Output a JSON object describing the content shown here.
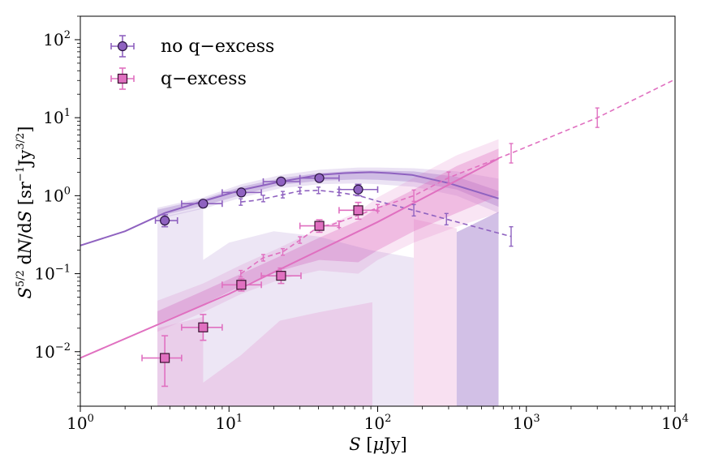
{
  "chart_data": {
    "type": "scatter",
    "xlabel": "S [μJy]",
    "ylabel": "S^{5/2} dN/dS [sr^{-1}Jy^{3/2}]",
    "xscale": "log",
    "yscale": "log",
    "xlim": [
      1,
      10000
    ],
    "ylim": [
      0.002,
      200
    ],
    "x_ticks": [
      "10^0",
      "10^1",
      "10^2",
      "10^3",
      "10^4"
    ],
    "y_ticks": [
      "10^-2",
      "10^-1",
      "10^0",
      "10^1",
      "10^2"
    ],
    "legend": {
      "position": "top-left",
      "entries": [
        "no q−excess",
        "q−excess"
      ]
    },
    "colors": {
      "purple": "#8f62c0",
      "pink": "#e070c0",
      "purple_edge": "#2a1440",
      "pink_edge": "#3a1030"
    },
    "series": [
      {
        "name": "no q−excess",
        "marker": "circle",
        "points": [
          {
            "x": 3.7,
            "y": 0.48,
            "xerr": [
              3.2,
              4.5
            ],
            "yerr": [
              0.4,
              0.57
            ]
          },
          {
            "x": 6.7,
            "y": 0.79,
            "xerr": [
              4.8,
              9.0
            ],
            "yerr": [
              0.71,
              0.86
            ]
          },
          {
            "x": 12.1,
            "y": 1.1,
            "xerr": [
              9.0,
              16.5
            ],
            "yerr": [
              1.0,
              1.2
            ]
          },
          {
            "x": 22.4,
            "y": 1.52,
            "xerr": [
              17.0,
              30.0
            ],
            "yerr": [
              1.4,
              1.65
            ]
          },
          {
            "x": 40.5,
            "y": 1.68,
            "xerr": [
              30.0,
              55.0
            ],
            "yerr": [
              1.55,
              1.82
            ]
          },
          {
            "x": 74.0,
            "y": 1.2,
            "xerr": [
              55.0,
              100.0
            ],
            "yerr": [
              1.0,
              1.4
            ]
          }
        ]
      },
      {
        "name": "q−excess",
        "marker": "square",
        "points": [
          {
            "x": 3.7,
            "y": 0.0083,
            "xerr": [
              2.6,
              4.8
            ],
            "yerr": [
              0.0036,
              0.016
            ]
          },
          {
            "x": 6.7,
            "y": 0.0205,
            "xerr": [
              4.8,
              9.0
            ],
            "yerr": [
              0.014,
              0.03
            ]
          },
          {
            "x": 12.1,
            "y": 0.072,
            "xerr": [
              9.0,
              16.5
            ],
            "yerr": [
              0.06,
              0.086
            ]
          },
          {
            "x": 22.4,
            "y": 0.094,
            "xerr": [
              16.5,
              30.5
            ],
            "yerr": [
              0.075,
              0.118
            ]
          },
          {
            "x": 40.5,
            "y": 0.41,
            "xerr": [
              30.0,
              55.0
            ],
            "yerr": [
              0.34,
              0.49
            ]
          },
          {
            "x": 74.0,
            "y": 0.65,
            "xerr": [
              55.0,
              100.0
            ],
            "yerr": [
              0.5,
              0.82
            ]
          }
        ]
      }
    ],
    "model_lines": {
      "purple_solid": [
        [
          1,
          0.23
        ],
        [
          2,
          0.35
        ],
        [
          3.7,
          0.6
        ],
        [
          6.7,
          0.85
        ],
        [
          12.1,
          1.18
        ],
        [
          22.4,
          1.52
        ],
        [
          40.5,
          1.85
        ],
        [
          60,
          1.95
        ],
        [
          90,
          2.0
        ],
        [
          120,
          1.95
        ],
        [
          170,
          1.85
        ],
        [
          300,
          1.45
        ],
        [
          650,
          0.92
        ]
      ],
      "purple_dashed": [
        [
          12,
          0.83
        ],
        [
          15,
          0.87
        ],
        [
          20,
          0.97
        ],
        [
          30,
          1.15
        ],
        [
          40,
          1.17
        ],
        [
          55,
          1.1
        ],
        [
          75,
          1.0
        ],
        [
          100,
          0.85
        ],
        [
          175,
          0.65
        ],
        [
          290,
          0.5
        ],
        [
          790,
          0.3
        ]
      ],
      "pink_solid": [
        [
          1,
          0.0083
        ],
        [
          10,
          0.055
        ],
        [
          100,
          0.46
        ],
        [
          650,
          3.0
        ]
      ],
      "pink_dashed": [
        [
          12,
          0.1
        ],
        [
          17,
          0.16
        ],
        [
          23,
          0.19
        ],
        [
          30,
          0.27
        ],
        [
          40,
          0.4
        ],
        [
          50,
          0.43
        ],
        [
          70,
          0.54
        ],
        [
          100,
          0.7
        ],
        [
          175,
          1.0
        ],
        [
          300,
          1.7
        ],
        [
          790,
          3.5
        ],
        [
          3000,
          10.0
        ],
        [
          10000,
          31.0
        ]
      ]
    },
    "dashed_point_markers": {
      "purple": [
        [
          12,
          0.83
        ],
        [
          17,
          0.92
        ],
        [
          23,
          1.03
        ],
        [
          30,
          1.16
        ],
        [
          40,
          1.17
        ],
        [
          55,
          1.1
        ],
        [
          175,
          0.65
        ],
        [
          290,
          0.5
        ],
        [
          790,
          0.3
        ]
      ],
      "pink": [
        [
          12,
          0.1
        ],
        [
          17,
          0.16
        ],
        [
          23,
          0.19
        ],
        [
          30,
          0.27
        ],
        [
          40,
          0.4
        ],
        [
          55,
          0.43
        ],
        [
          100,
          0.7
        ],
        [
          175,
          1.0
        ],
        [
          300,
          1.7
        ],
        [
          790,
          3.5
        ],
        [
          3000,
          10.0
        ]
      ]
    },
    "bands": {
      "purple_dark": {
        "x": [
          3.3,
          6.7,
          12.1,
          22.4,
          40.5,
          74,
          100,
          175,
          340,
          650
        ],
        "lo": [
          0.54,
          0.74,
          1.02,
          1.38,
          1.55,
          1.62,
          1.6,
          1.5,
          1.2,
          0.72
        ],
        "hi": [
          0.66,
          0.9,
          1.3,
          1.68,
          1.95,
          2.1,
          2.1,
          2.05,
          1.75,
          1.15
        ]
      },
      "purple_light": {
        "x": [
          3.3,
          6.7,
          12.1,
          22.4,
          40.5,
          74,
          100,
          175,
          340,
          650
        ],
        "lo": [
          0.5,
          0.68,
          0.94,
          1.25,
          1.4,
          1.44,
          1.4,
          1.3,
          1.0,
          0.6
        ],
        "hi": [
          0.7,
          0.95,
          1.4,
          1.85,
          2.15,
          2.3,
          2.3,
          2.25,
          2.05,
          1.65
        ]
      },
      "pink_dark": {
        "x": [
          3.3,
          6.7,
          12.1,
          22.4,
          40.5,
          74,
          100,
          175,
          340,
          650
        ],
        "lo": [
          0.023,
          0.04,
          0.07,
          0.11,
          0.15,
          0.14,
          0.2,
          0.35,
          0.6,
          1.0
        ],
        "hi": [
          0.033,
          0.06,
          0.1,
          0.17,
          0.29,
          0.48,
          0.7,
          1.2,
          2.4,
          4.0
        ]
      },
      "pink_light": {
        "x": [
          3.3,
          6.7,
          12.1,
          22.4,
          40.5,
          74,
          100,
          175,
          340,
          650
        ],
        "lo": [
          0.018,
          0.032,
          0.055,
          0.085,
          0.11,
          0.1,
          0.15,
          0.25,
          0.4,
          0.6
        ],
        "hi": [
          0.045,
          0.075,
          0.13,
          0.22,
          0.38,
          0.62,
          0.95,
          1.7,
          3.3,
          5.3
        ]
      }
    }
  }
}
